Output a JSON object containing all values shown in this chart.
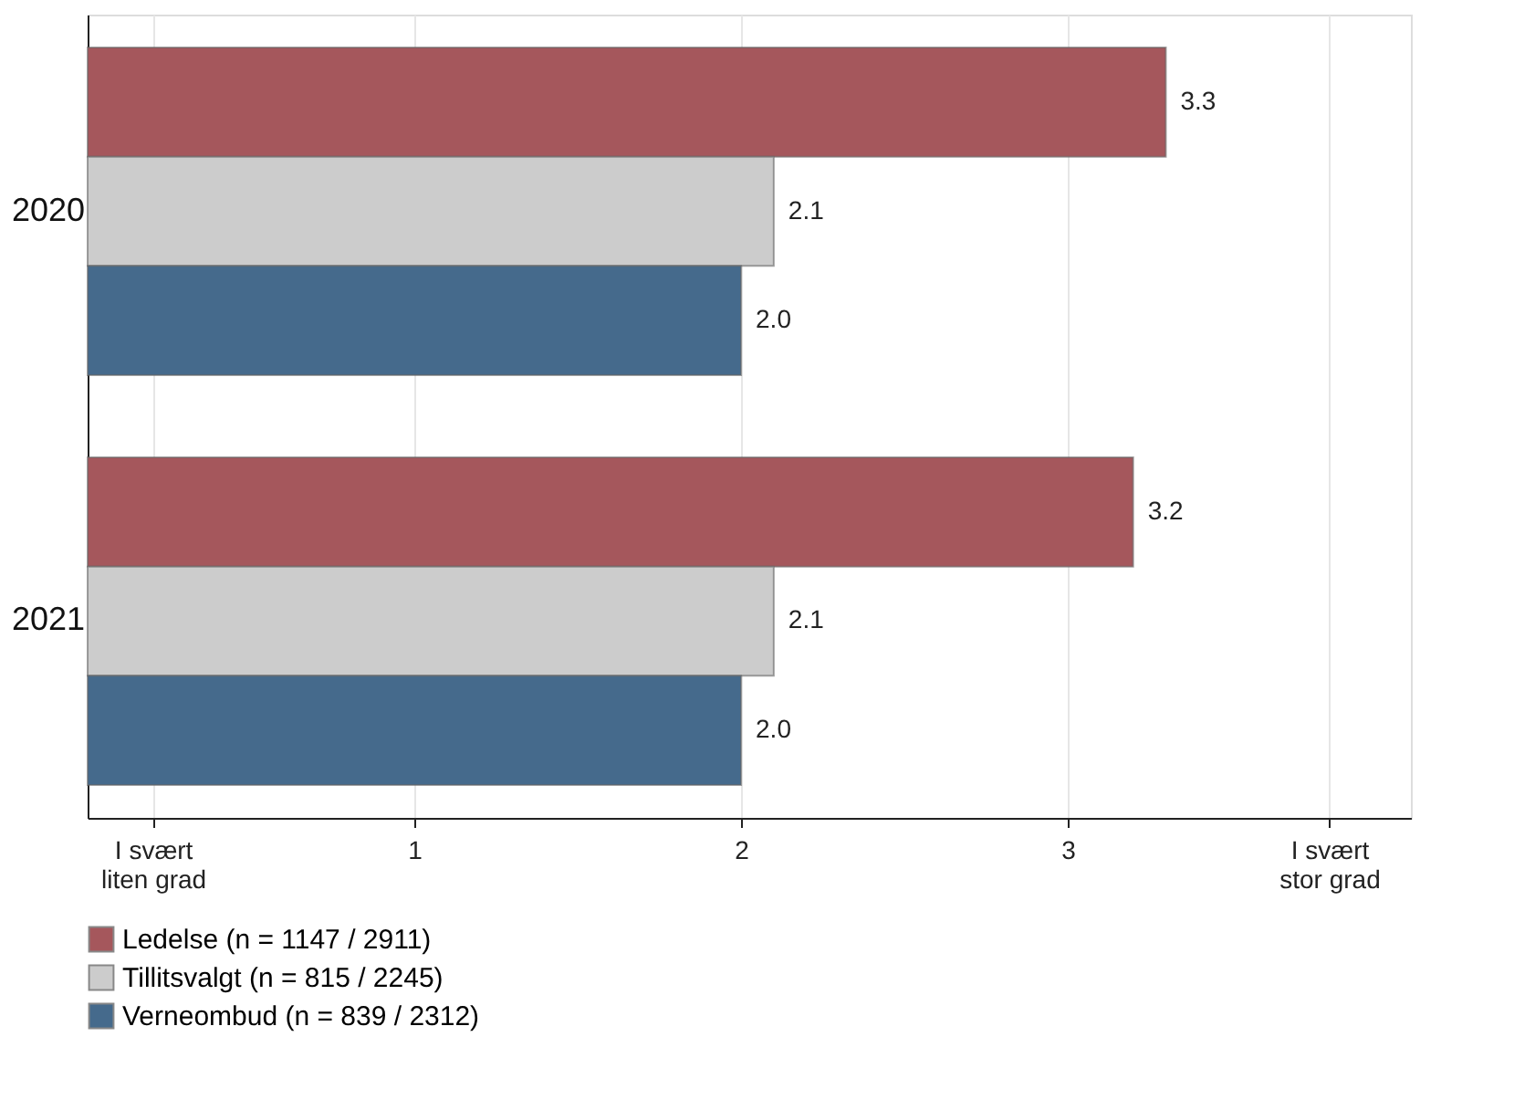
{
  "chart_data": {
    "type": "bar",
    "orientation": "horizontal",
    "categories": [
      "2020",
      "2021"
    ],
    "series": [
      {
        "name": "Ledelse (n = 1147 / 2911)",
        "color": "#a5575c",
        "values": [
          3.3,
          3.2
        ],
        "value_labels": [
          "3.3",
          "3.2"
        ]
      },
      {
        "name": "Tillitsvalgt (n = 815 / 2245)",
        "color": "#cccccc",
        "values": [
          2.1,
          2.1
        ],
        "value_labels": [
          "2.1",
          "2.1"
        ]
      },
      {
        "name": "Verneombud (n = 839 / 2312)",
        "color": "#456a8c",
        "values": [
          2.0,
          2.0
        ],
        "value_labels": [
          "2.0",
          "2.0"
        ]
      }
    ],
    "xlim": [
      0,
      4.05
    ],
    "xticks": [
      {
        "value": 0.2,
        "label": "I svært\nliten grad"
      },
      1,
      2,
      3,
      {
        "value": 3.8,
        "label": "I svært\nstor grad"
      }
    ],
    "grid": "x",
    "legend": "bottom"
  }
}
